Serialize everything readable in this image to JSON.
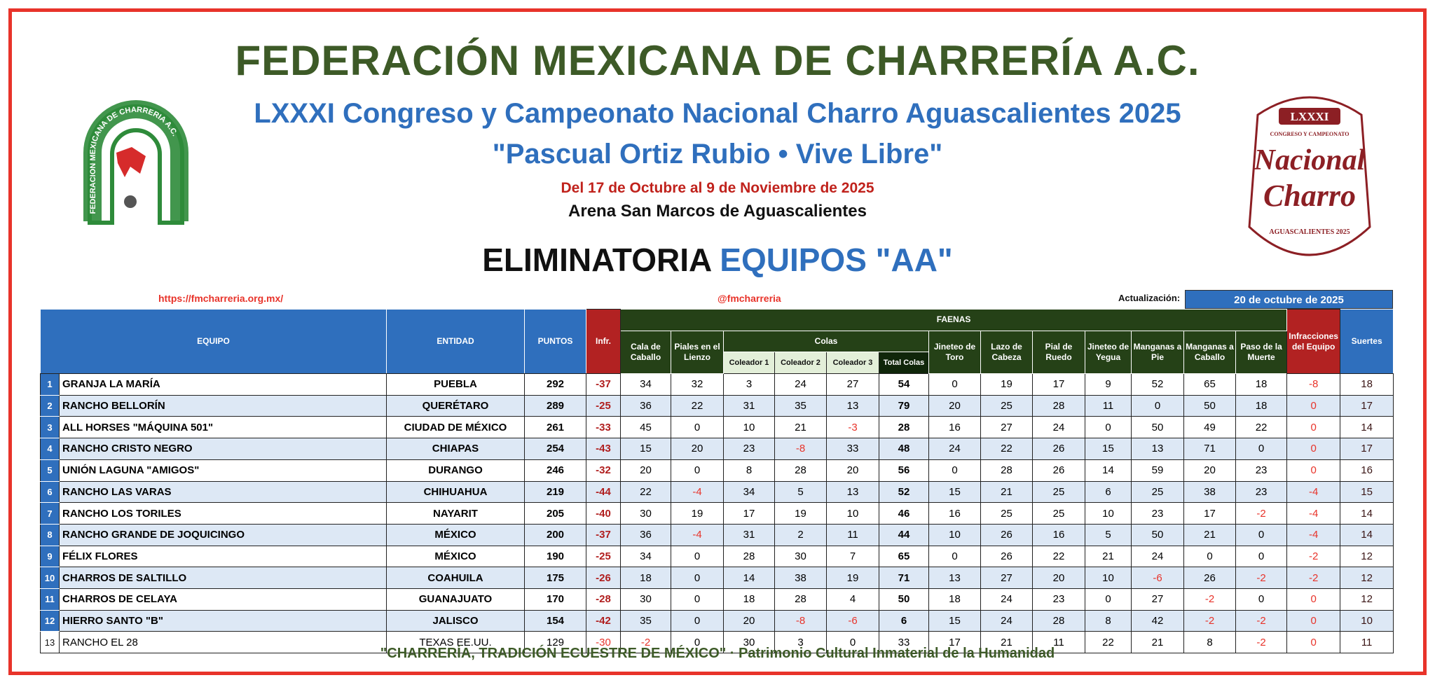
{
  "header": {
    "title": "FEDERACIÓN MEXICANA DE CHARRERÍA A.C.",
    "subtitle": "LXXXI Congreso y Campeonato Nacional Charro Aguascalientes 2025",
    "motto": "\"Pascual Ortiz Rubio • Vive Libre\"",
    "dates": "Del 17 de Octubre al 9 de Noviembre de 2025",
    "venue": "Arena San Marcos de Aguascalientes",
    "heading_a": "ELIMINATORIA",
    "heading_b": "EQUIPOS \"AA\""
  },
  "logos": {
    "left": "FEDERACION MEXICANA DE CHARRERIA A.C.",
    "right": "LXXXI CONGRESO Y CAMPEONATO NACIONAL CHARRO AGUASCALIENTES 2025"
  },
  "links": {
    "website": "https://fmcharreria.org.mx/",
    "social": "@fmcharreria",
    "update_label": "Actualización:",
    "update_value": "20 de octubre de 2025"
  },
  "table": {
    "headers": {
      "equipo": "EQUIPO",
      "entidad": "ENTIDAD",
      "puntos": "PUNTOS",
      "infr": "Infr.",
      "faenas": "FAENAS",
      "cala": "Cala de Caballo",
      "piales": "Piales en el Lienzo",
      "colas": "Colas",
      "c1": "Coleador 1",
      "c2": "Coleador 2",
      "c3": "Coleador 3",
      "total": "Total Colas",
      "jtoro": "Jineteo de Toro",
      "lazo": "Lazo de Cabeza",
      "pial": "Pial de Ruedo",
      "jyegua": "Jineteo de Yegua",
      "mpie": "Manganas a Pie",
      "mcab": "Manganas a Caballo",
      "paso": "Paso de la Muerte",
      "infeq": "Infracciones del Equipo",
      "suertes": "Suertes"
    },
    "rows": [
      [
        "1",
        "GRANJA LA MARÍA",
        "PUEBLA",
        "292",
        "-37",
        "34",
        "32",
        "3",
        "24",
        "27",
        "54",
        "0",
        "19",
        "17",
        "9",
        "52",
        "65",
        "18",
        "-8",
        "18"
      ],
      [
        "2",
        "RANCHO BELLORÍN",
        "QUERÉTARO",
        "289",
        "-25",
        "36",
        "22",
        "31",
        "35",
        "13",
        "79",
        "20",
        "25",
        "28",
        "11",
        "0",
        "50",
        "18",
        "0",
        "17"
      ],
      [
        "3",
        "ALL HORSES \"MÁQUINA 501\"",
        "CIUDAD DE MÉXICO",
        "261",
        "-33",
        "45",
        "0",
        "10",
        "21",
        "-3",
        "28",
        "16",
        "27",
        "24",
        "0",
        "50",
        "49",
        "22",
        "0",
        "14"
      ],
      [
        "4",
        "RANCHO CRISTO NEGRO",
        "CHIAPAS",
        "254",
        "-43",
        "15",
        "20",
        "23",
        "-8",
        "33",
        "48",
        "24",
        "22",
        "26",
        "15",
        "13",
        "71",
        "0",
        "0",
        "17"
      ],
      [
        "5",
        "UNIÓN LAGUNA \"AMIGOS\"",
        "DURANGO",
        "246",
        "-32",
        "20",
        "0",
        "8",
        "28",
        "20",
        "56",
        "0",
        "28",
        "26",
        "14",
        "59",
        "20",
        "23",
        "0",
        "16"
      ],
      [
        "6",
        "RANCHO LAS VARAS",
        "CHIHUAHUA",
        "219",
        "-44",
        "22",
        "-4",
        "34",
        "5",
        "13",
        "52",
        "15",
        "21",
        "25",
        "6",
        "25",
        "38",
        "23",
        "-4",
        "15"
      ],
      [
        "7",
        "RANCHO LOS TORILES",
        "NAYARIT",
        "205",
        "-40",
        "30",
        "19",
        "17",
        "19",
        "10",
        "46",
        "16",
        "25",
        "25",
        "10",
        "23",
        "17",
        "-2",
        "-4",
        "14"
      ],
      [
        "8",
        "RANCHO GRANDE DE JOQUICINGO",
        "MÉXICO",
        "200",
        "-37",
        "36",
        "-4",
        "31",
        "2",
        "11",
        "44",
        "10",
        "26",
        "16",
        "5",
        "50",
        "21",
        "0",
        "-4",
        "14"
      ],
      [
        "9",
        "FÉLIX FLORES",
        "MÉXICO",
        "190",
        "-25",
        "34",
        "0",
        "28",
        "30",
        "7",
        "65",
        "0",
        "26",
        "22",
        "21",
        "24",
        "0",
        "0",
        "-2",
        "12"
      ],
      [
        "10",
        "CHARROS DE SALTILLO",
        "COAHUILA",
        "175",
        "-26",
        "18",
        "0",
        "14",
        "38",
        "19",
        "71",
        "13",
        "27",
        "20",
        "10",
        "-6",
        "26",
        "-2",
        "-2",
        "12"
      ],
      [
        "11",
        "CHARROS DE CELAYA",
        "GUANAJUATO",
        "170",
        "-28",
        "30",
        "0",
        "18",
        "28",
        "4",
        "50",
        "18",
        "24",
        "23",
        "0",
        "27",
        "-2",
        "0",
        "0",
        "12"
      ],
      [
        "12",
        "HIERRO SANTO \"B\"",
        "JALISCO",
        "154",
        "-42",
        "35",
        "0",
        "20",
        "-8",
        "-6",
        "6",
        "15",
        "24",
        "28",
        "8",
        "42",
        "-2",
        "-2",
        "0",
        "10"
      ],
      [
        "13",
        "RANCHO EL 28",
        "TEXAS EE.UU.",
        "129",
        "-30",
        "-2",
        "0",
        "30",
        "3",
        "0",
        "33",
        "17",
        "21",
        "11",
        "22",
        "21",
        "8",
        "-2",
        "0",
        "11"
      ]
    ]
  },
  "footer": {
    "quote": "\"CHARRERÍA, TRADICIÓN ECUESTRE DE MÉXICO\"",
    "rest": " · Patrimonio Cultural Inmaterial de la Humanidad"
  }
}
